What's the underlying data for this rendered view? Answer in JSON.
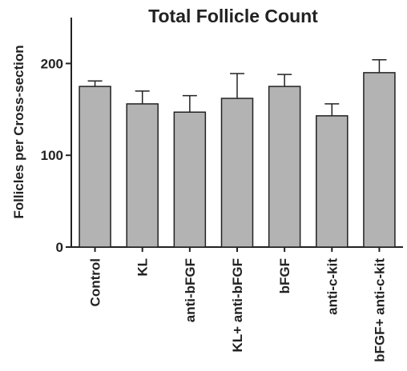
{
  "chart_data": {
    "type": "bar",
    "title": "Total Follicle Count",
    "ylabel": "Follicles per Cross-section",
    "xlabel": "",
    "ylim": [
      0,
      250
    ],
    "yticks": [
      0,
      100,
      200
    ],
    "grid": false,
    "categories": [
      "Control",
      "KL",
      "anti-bFGF",
      "KL+ anti-bFGF",
      "bFGF",
      "anti-c-kit",
      "bFGF+ anti-c-kit"
    ],
    "values": [
      175,
      156,
      147,
      162,
      175,
      143,
      190
    ],
    "error_upper": [
      6,
      14,
      18,
      27,
      13,
      13,
      14
    ],
    "colors": {
      "bar_fill": "#b3b3b3",
      "bar_edge": "#222222",
      "axis": "#222222"
    }
  }
}
